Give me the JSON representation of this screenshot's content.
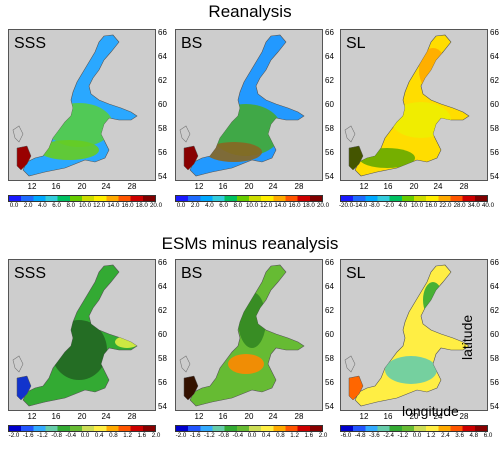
{
  "titles": {
    "top": "Reanalysis",
    "bottom": "ESMs minus reanalysis"
  },
  "panels": [
    {
      "label": "SSS",
      "row": 0,
      "col": 0
    },
    {
      "label": "BS",
      "row": 0,
      "col": 1
    },
    {
      "label": "SL",
      "row": 0,
      "col": 2
    },
    {
      "label": "SSS",
      "row": 1,
      "col": 0
    },
    {
      "label": "BS",
      "row": 1,
      "col": 1
    },
    {
      "label": "SL",
      "row": 1,
      "col": 2
    }
  ],
  "lat_ticks": [
    "66",
    "64",
    "62",
    "60",
    "58",
    "56",
    "54"
  ],
  "lon_ticks": [
    "12",
    "16",
    "20",
    "24",
    "28"
  ],
  "colorbars": {
    "top_left": [
      "0.0",
      "2.0",
      "4.0",
      "6.0",
      "8.0",
      "10.0",
      "12.0",
      "14.0",
      "16.0",
      "18.0",
      "20.0"
    ],
    "top_middle": [
      "0.0",
      "2.0",
      "4.0",
      "6.0",
      "8.0",
      "10.0",
      "12.0",
      "14.0",
      "16.0",
      "18.0",
      "20.0"
    ],
    "top_right": [
      "-20.0",
      "-14.0",
      "-8.0",
      "-2.0",
      "4.0",
      "10.0",
      "16.0",
      "22.0",
      "28.0",
      "34.0",
      "40.0"
    ],
    "bottom_left": [
      "-2.0",
      "-1.6",
      "-1.2",
      "-0.8",
      "-0.4",
      "0.0",
      "0.4",
      "0.8",
      "1.2",
      "1.6",
      "2.0"
    ],
    "bottom_middle": [
      "-2.0",
      "-1.6",
      "-1.2",
      "-0.8",
      "-0.4",
      "0.0",
      "0.4",
      "0.8",
      "1.2",
      "1.6",
      "2.0"
    ],
    "bottom_right": [
      "-6.0",
      "-4.8",
      "-3.6",
      "-2.4",
      "-1.2",
      "0.0",
      "1.2",
      "2.4",
      "3.6",
      "4.8",
      "6.0"
    ]
  },
  "annotations": {
    "latitude": "latitude",
    "longitude": "longitude"
  },
  "colors": {
    "land": "#cdcdcd",
    "rainbow": [
      "#1a1aff",
      "#1e6bff",
      "#00a8ff",
      "#33ccdd",
      "#00c060",
      "#66cc00",
      "#ccdd00",
      "#ffee00",
      "#ffaa00",
      "#ff5500",
      "#cc0000",
      "#800000"
    ],
    "diverging": [
      "#0000cc",
      "#2255ff",
      "#33aaff",
      "#66ccaa",
      "#33aa33",
      "#66bb33",
      "#ccdd55",
      "#ffee44",
      "#ffaa00",
      "#ff5500",
      "#cc0000",
      "#880000"
    ]
  }
}
